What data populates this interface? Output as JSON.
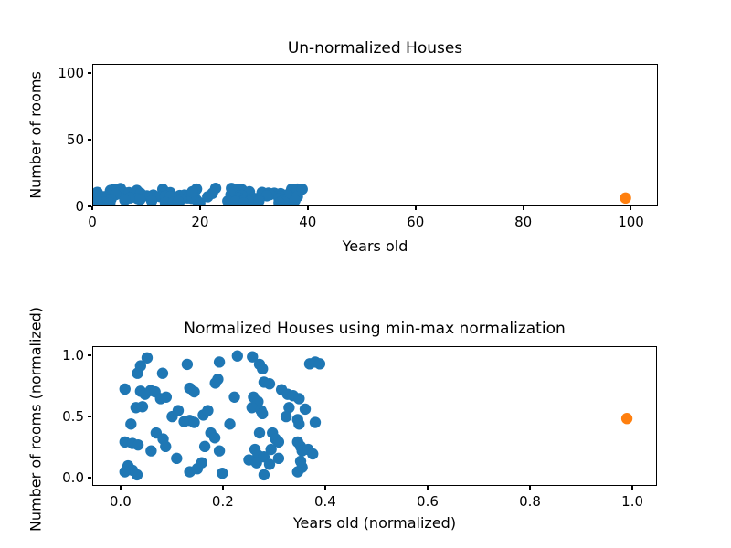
{
  "figure": {
    "background": "#ffffff"
  },
  "chart_data": [
    {
      "type": "scatter",
      "title": "Un-normalized Houses",
      "xlabel": "Years old",
      "ylabel": "Number of rooms",
      "xlim": [
        0,
        105
      ],
      "ylim": [
        0,
        107
      ],
      "grid": false,
      "legend": null,
      "xticks": [
        {
          "v": 0,
          "label": "0"
        },
        {
          "v": 20,
          "label": "20"
        },
        {
          "v": 40,
          "label": "40"
        },
        {
          "v": 60,
          "label": "60"
        },
        {
          "v": 80,
          "label": "80"
        },
        {
          "v": 100,
          "label": "100"
        }
      ],
      "yticks": [
        {
          "v": 0,
          "label": "0"
        },
        {
          "v": 50,
          "label": "50"
        },
        {
          "v": 100,
          "label": "100"
        }
      ],
      "series": [
        {
          "color": "#1f77b4",
          "points": [
            [
              4.4,
              12.3
            ],
            [
              3.1,
              11.6
            ],
            [
              2.5,
              10.8
            ],
            [
              0.0,
              9.3
            ],
            [
              7.5,
              10.8
            ],
            [
              12.4,
              11.7
            ],
            [
              18.8,
              11.9
            ],
            [
              3.1,
              9.1
            ],
            [
              4.0,
              8.8
            ],
            [
              5.1,
              9.2
            ],
            [
              6.0,
              9.1
            ],
            [
              7.1,
              8.4
            ],
            [
              8.2,
              8.6
            ],
            [
              2.2,
              7.6
            ],
            [
              3.5,
              7.6
            ],
            [
              12.9,
              9.4
            ],
            [
              13.8,
              9.1
            ],
            [
              10.6,
              7.3
            ],
            [
              9.4,
              6.7
            ],
            [
              11.8,
              6.2
            ],
            [
              12.9,
              6.3
            ],
            [
              13.8,
              6.1
            ],
            [
              15.6,
              6.9
            ],
            [
              16.5,
              7.3
            ],
            [
              1.2,
              6.0
            ],
            [
              0.0,
              4.3
            ],
            [
              1.5,
              4.1
            ],
            [
              2.6,
              4.0
            ],
            [
              6.2,
              5.1
            ],
            [
              7.6,
              4.6
            ],
            [
              8.1,
              3.9
            ],
            [
              5.2,
              3.4
            ],
            [
              10.3,
              2.7
            ],
            [
              17.1,
              5.1
            ],
            [
              17.9,
              4.7
            ],
            [
              15.9,
              3.9
            ],
            [
              18.8,
              3.4
            ],
            [
              0.6,
              2.0
            ],
            [
              1.5,
              1.6
            ],
            [
              0.0,
              1.4
            ],
            [
              2.4,
              1.1
            ],
            [
              12.9,
              1.4
            ],
            [
              14.4,
              1.7
            ],
            [
              15.3,
              2.3
            ],
            [
              19.4,
              1.3
            ],
            [
              18.5,
              10.3
            ],
            [
              18.0,
              9.9
            ],
            [
              20.9,
              6.0
            ],
            [
              22.4,
              12.5
            ],
            [
              25.4,
              12.4
            ],
            [
              26.8,
              11.7
            ],
            [
              27.4,
              11.3
            ],
            [
              36.8,
              11.8
            ],
            [
              37.9,
              11.9
            ],
            [
              38.8,
              11.8
            ],
            [
              27.7,
              10.0
            ],
            [
              28.8,
              9.8
            ],
            [
              31.2,
              9.3
            ],
            [
              32.4,
              8.8
            ],
            [
              33.5,
              8.7
            ],
            [
              34.7,
              8.4
            ],
            [
              21.8,
              8.6
            ],
            [
              25.6,
              8.6
            ],
            [
              26.5,
              8.1
            ],
            [
              25.3,
              7.6
            ],
            [
              27.1,
              7.3
            ],
            [
              27.4,
              7.0
            ],
            [
              32.7,
              7.6
            ],
            [
              35.9,
              7.4
            ],
            [
              32.1,
              6.7
            ],
            [
              34.4,
              6.4
            ],
            [
              34.7,
              6.0
            ],
            [
              37.9,
              6.1
            ],
            [
              26.8,
              5.1
            ],
            [
              29.4,
              5.1
            ],
            [
              30.0,
              4.6
            ],
            [
              30.6,
              4.3
            ],
            [
              29.1,
              3.6
            ],
            [
              25.9,
              3.6
            ],
            [
              26.5,
              3.0
            ],
            [
              27.7,
              2.9
            ],
            [
              24.7,
              2.6
            ],
            [
              26.2,
              2.3
            ],
            [
              28.8,
              2.1
            ],
            [
              30.6,
              2.7
            ],
            [
              34.4,
              4.3
            ],
            [
              35.0,
              3.9
            ],
            [
              35.3,
              3.4
            ],
            [
              36.5,
              3.6
            ],
            [
              37.4,
              3.1
            ],
            [
              35.0,
              2.4
            ],
            [
              35.3,
              1.9
            ],
            [
              34.4,
              1.4
            ],
            [
              27.7,
              1.1
            ]
          ]
        },
        {
          "color": "#ff7f0e",
          "points": [
            [
              100,
              5
            ]
          ]
        }
      ]
    },
    {
      "type": "scatter",
      "title": "Normalized Houses using min-max normalization",
      "xlabel": "Years old (normalized)",
      "ylabel": "Number of rooms (normalized)",
      "xlim": [
        -0.055,
        1.048
      ],
      "ylim": [
        -0.065,
        1.074
      ],
      "grid": false,
      "legend": null,
      "xticks": [
        {
          "v": 0.0,
          "label": "0.0"
        },
        {
          "v": 0.2,
          "label": "0.2"
        },
        {
          "v": 0.4,
          "label": "0.4"
        },
        {
          "v": 0.6,
          "label": "0.6"
        },
        {
          "v": 0.8,
          "label": "0.8"
        },
        {
          "v": 1.0,
          "label": "1.0"
        }
      ],
      "yticks": [
        {
          "v": 0.0,
          "label": "0.0"
        },
        {
          "v": 0.5,
          "label": "0.5"
        },
        {
          "v": 1.0,
          "label": "1.0"
        }
      ],
      "series": [
        {
          "color": "#1f77b4",
          "points": [
            [
              0.044,
              0.985
            ],
            [
              0.031,
              0.918
            ],
            [
              0.025,
              0.856
            ],
            [
              0.0,
              0.725
            ],
            [
              0.075,
              0.856
            ],
            [
              0.124,
              0.93
            ],
            [
              0.188,
              0.95
            ],
            [
              0.031,
              0.707
            ],
            [
              0.04,
              0.682
            ],
            [
              0.051,
              0.712
            ],
            [
              0.06,
              0.702
            ],
            [
              0.071,
              0.645
            ],
            [
              0.082,
              0.658
            ],
            [
              0.022,
              0.571
            ],
            [
              0.035,
              0.578
            ],
            [
              0.129,
              0.732
            ],
            [
              0.138,
              0.702
            ],
            [
              0.106,
              0.546
            ],
            [
              0.094,
              0.496
            ],
            [
              0.118,
              0.454
            ],
            [
              0.129,
              0.464
            ],
            [
              0.138,
              0.447
            ],
            [
              0.156,
              0.509
            ],
            [
              0.165,
              0.546
            ],
            [
              0.012,
              0.434
            ],
            [
              0.0,
              0.285
            ],
            [
              0.015,
              0.273
            ],
            [
              0.026,
              0.26
            ],
            [
              0.062,
              0.36
            ],
            [
              0.076,
              0.31
            ],
            [
              0.081,
              0.248
            ],
            [
              0.052,
              0.211
            ],
            [
              0.103,
              0.149
            ],
            [
              0.171,
              0.36
            ],
            [
              0.179,
              0.32
            ],
            [
              0.159,
              0.248
            ],
            [
              0.188,
              0.211
            ],
            [
              0.006,
              0.087
            ],
            [
              0.015,
              0.05
            ],
            [
              0.0,
              0.037
            ],
            [
              0.024,
              0.012
            ],
            [
              0.129,
              0.037
            ],
            [
              0.144,
              0.062
            ],
            [
              0.153,
              0.112
            ],
            [
              0.194,
              0.025
            ],
            [
              0.185,
              0.807
            ],
            [
              0.18,
              0.775
            ],
            [
              0.209,
              0.434
            ],
            [
              0.224,
              1.0
            ],
            [
              0.254,
              0.993
            ],
            [
              0.268,
              0.93
            ],
            [
              0.274,
              0.893
            ],
            [
              0.368,
              0.935
            ],
            [
              0.379,
              0.95
            ],
            [
              0.388,
              0.935
            ],
            [
              0.277,
              0.782
            ],
            [
              0.288,
              0.769
            ],
            [
              0.312,
              0.72
            ],
            [
              0.324,
              0.682
            ],
            [
              0.335,
              0.67
            ],
            [
              0.347,
              0.645
            ],
            [
              0.218,
              0.658
            ],
            [
              0.256,
              0.658
            ],
            [
              0.265,
              0.62
            ],
            [
              0.253,
              0.571
            ],
            [
              0.271,
              0.546
            ],
            [
              0.274,
              0.521
            ],
            [
              0.327,
              0.571
            ],
            [
              0.359,
              0.558
            ],
            [
              0.321,
              0.496
            ],
            [
              0.344,
              0.471
            ],
            [
              0.347,
              0.434
            ],
            [
              0.379,
              0.447
            ],
            [
              0.268,
              0.36
            ],
            [
              0.294,
              0.36
            ],
            [
              0.3,
              0.31
            ],
            [
              0.306,
              0.285
            ],
            [
              0.291,
              0.223
            ],
            [
              0.259,
              0.223
            ],
            [
              0.265,
              0.174
            ],
            [
              0.277,
              0.161
            ],
            [
              0.247,
              0.136
            ],
            [
              0.262,
              0.112
            ],
            [
              0.288,
              0.099
            ],
            [
              0.306,
              0.149
            ],
            [
              0.344,
              0.285
            ],
            [
              0.35,
              0.248
            ],
            [
              0.353,
              0.211
            ],
            [
              0.365,
              0.223
            ],
            [
              0.374,
              0.186
            ],
            [
              0.35,
              0.124
            ],
            [
              0.353,
              0.074
            ],
            [
              0.344,
              0.037
            ],
            [
              0.277,
              0.012
            ]
          ]
        },
        {
          "color": "#ff7f0e",
          "points": [
            [
              1.0,
              0.48
            ]
          ]
        }
      ]
    }
  ]
}
